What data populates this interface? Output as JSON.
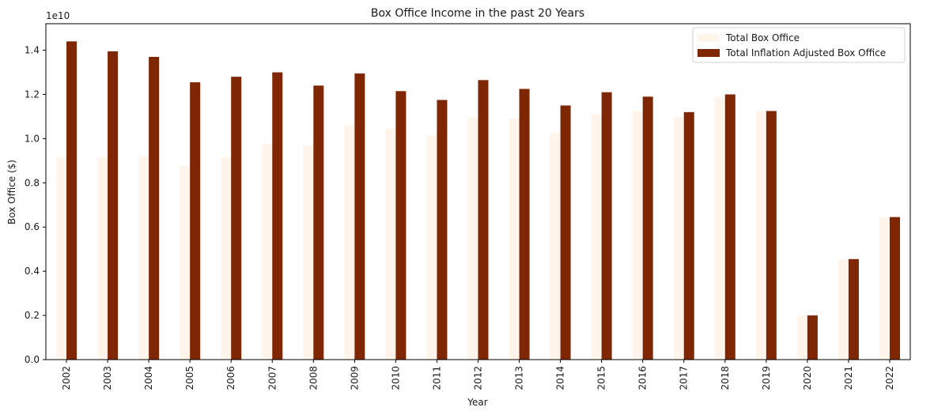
{
  "chart_data": {
    "type": "bar",
    "title": "Box Office Income in the past 20 Years",
    "xlabel": "Year",
    "ylabel": "Box Office ($)",
    "y_offset_label": "1e10",
    "y_scale": 10000000000,
    "ylim": [
      0,
      1.52
    ],
    "yticks": [
      "0.0",
      "0.2",
      "0.4",
      "0.6",
      "0.8",
      "1.0",
      "1.2",
      "1.4"
    ],
    "legend_position": "top-right",
    "grid": false,
    "categories": [
      "2002",
      "2003",
      "2004",
      "2005",
      "2006",
      "2007",
      "2008",
      "2009",
      "2010",
      "2011",
      "2012",
      "2013",
      "2014",
      "2015",
      "2016",
      "2017",
      "2018",
      "2019",
      "2020",
      "2021",
      "2022"
    ],
    "series": [
      {
        "name": "Total Box Office",
        "color": "#fff5eb",
        "values": [
          0.915,
          0.915,
          0.92,
          0.875,
          0.915,
          0.975,
          0.97,
          1.06,
          1.045,
          1.015,
          1.095,
          1.09,
          1.025,
          1.11,
          1.125,
          1.1,
          1.19,
          1.125,
          0.2,
          0.455,
          0.645
        ]
      },
      {
        "name": "Total Inflation Adjusted Box Office",
        "color": "#7f2704",
        "values": [
          1.44,
          1.395,
          1.37,
          1.255,
          1.28,
          1.3,
          1.24,
          1.295,
          1.215,
          1.175,
          1.265,
          1.225,
          1.15,
          1.21,
          1.19,
          1.12,
          1.2,
          1.125,
          0.2,
          0.455,
          0.645
        ]
      }
    ]
  }
}
